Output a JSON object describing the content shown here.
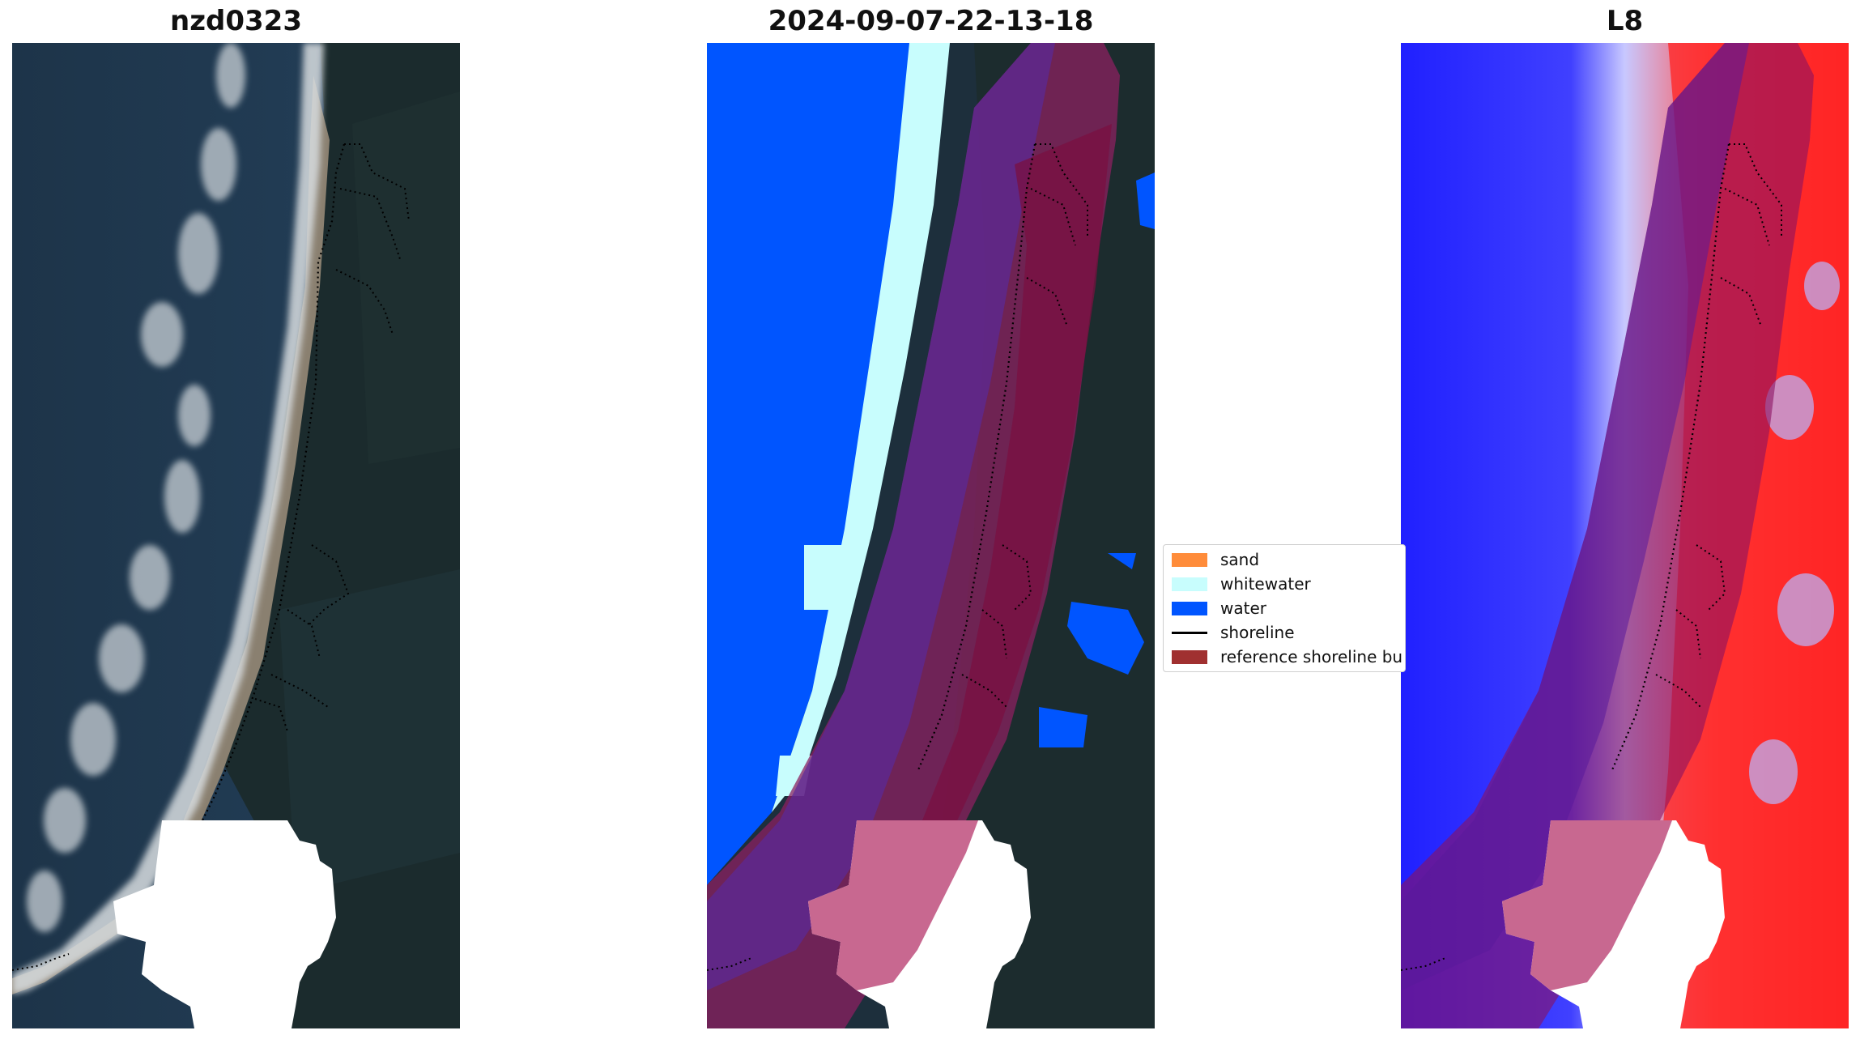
{
  "panels": [
    {
      "title": "nzd0323",
      "image": "satellite-rgb"
    },
    {
      "title": "2024-09-07-22-13-18",
      "image": "classified"
    },
    {
      "title": "L8",
      "image": "water-index"
    }
  ],
  "legend": {
    "items": [
      {
        "label": "sand",
        "color": "#ff8c3a",
        "kind": "patch"
      },
      {
        "label": "whitewater",
        "color": "#c8fdfd",
        "kind": "patch"
      },
      {
        "label": "water",
        "color": "#0055ff",
        "kind": "patch"
      },
      {
        "label": "shoreline",
        "color": "#000000",
        "kind": "line"
      },
      {
        "label": "reference shoreline bu",
        "color": "#a03030",
        "kind": "patch"
      }
    ]
  },
  "colors": {
    "ocean_dark": "#1c3348",
    "forest_dark": "#1a2a2c",
    "whitewater_rgb": "#d8dde0",
    "class_water": "#0055ff",
    "class_whitewater": "#c8fdfd",
    "buffer_overlay": "#8b0030",
    "index_blue": "#2020ff",
    "index_red": "#ff1818"
  }
}
